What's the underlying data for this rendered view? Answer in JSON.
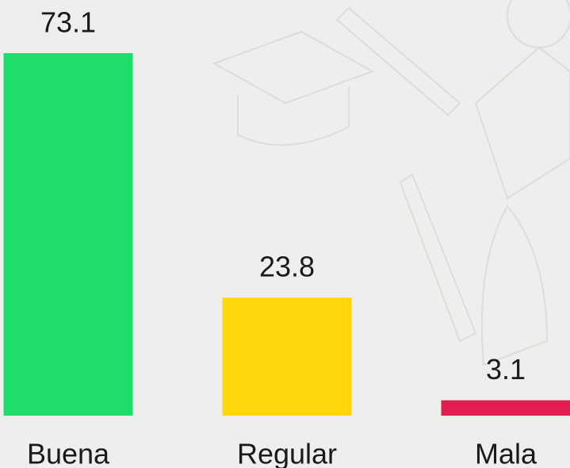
{
  "chart_data": {
    "type": "bar",
    "categories": [
      "Buena",
      "Regular",
      "Mala"
    ],
    "values": [
      73.1,
      23.8,
      3.1
    ],
    "colors": [
      "#1edd6a",
      "#ffd60a",
      "#e01e50"
    ]
  }
}
